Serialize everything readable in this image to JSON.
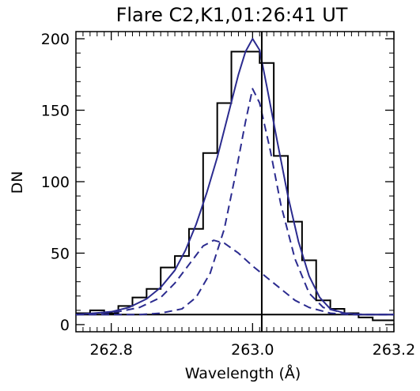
{
  "chart_data": {
    "type": "line",
    "title": "Flare C2,K1,01:26:41 UT",
    "xlabel": "Wavelength (Å)",
    "ylabel": "DN",
    "xlim": [
      262.75,
      263.2
    ],
    "ylim": [
      -5,
      205
    ],
    "xticks": [
      262.8,
      263.0,
      263.2
    ],
    "xtick_labels": [
      "262.8",
      "263.0",
      "263.2"
    ],
    "yticks": [
      0,
      50,
      100,
      150,
      200
    ],
    "ytick_labels": [
      "0",
      "50",
      "100",
      "150",
      "200"
    ],
    "grid": false,
    "legend": "none",
    "observed_histogram": {
      "bin_edges": [
        262.75,
        262.77,
        262.79,
        262.81,
        262.83,
        262.85,
        262.87,
        262.89,
        262.91,
        262.93,
        262.95,
        262.97,
        262.99,
        263.01,
        263.03,
        263.05,
        263.07,
        263.09,
        263.11,
        263.13,
        263.15,
        263.17,
        263.2
      ],
      "values": [
        8,
        10,
        8,
        13,
        19,
        25,
        40,
        48,
        67,
        120,
        155,
        191,
        191,
        183,
        118,
        72,
        45,
        17,
        11,
        8,
        5,
        3
      ],
      "color": "#000000"
    },
    "fit_total": {
      "x": [
        262.75,
        262.775,
        262.8,
        262.825,
        262.85,
        262.87,
        262.89,
        262.905,
        262.92,
        262.935,
        262.95,
        262.965,
        262.98,
        262.99,
        263.0,
        263.01,
        263.02,
        263.035,
        263.05,
        263.065,
        263.08,
        263.095,
        263.11,
        263.13,
        263.15,
        263.175,
        263.2
      ],
      "y": [
        7,
        8,
        9,
        12,
        18,
        26,
        38,
        52,
        70,
        92,
        117,
        146,
        175,
        191,
        200,
        192,
        167,
        128,
        90,
        58,
        34,
        19,
        11,
        8,
        7,
        7,
        7
      ],
      "color": "#2b2b8f"
    },
    "components": [
      {
        "x": [
          262.75,
          262.8,
          262.84,
          262.87,
          262.9,
          262.92,
          262.94,
          262.96,
          262.975,
          262.99,
          263.0,
          263.01,
          263.025,
          263.04,
          263.06,
          263.08,
          263.1,
          263.13,
          263.16,
          263.2
        ],
        "y": [
          7,
          7,
          7,
          8,
          11,
          19,
          36,
          67,
          103,
          142,
          165,
          155,
          122,
          84,
          46,
          22,
          12,
          8,
          7,
          7
        ],
        "color": "#2b2b8f",
        "dash": true
      },
      {
        "x": [
          262.75,
          262.78,
          262.81,
          262.84,
          262.87,
          262.89,
          262.91,
          262.93,
          262.945,
          262.96,
          262.98,
          263.0,
          263.02,
          263.04,
          263.06,
          263.08,
          263.11,
          263.14,
          263.17,
          263.2
        ],
        "y": [
          7,
          8,
          9,
          12,
          19,
          29,
          42,
          55,
          59,
          57,
          50,
          41,
          33,
          25,
          17,
          12,
          8,
          7,
          7,
          7
        ],
        "color": "#2b2b8f",
        "dash": true
      }
    ],
    "background_level": 7,
    "reference_line_x": 263.013
  }
}
